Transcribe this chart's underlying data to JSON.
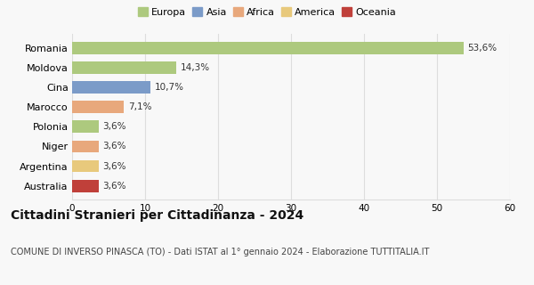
{
  "categories": [
    "Romania",
    "Moldova",
    "Cina",
    "Marocco",
    "Polonia",
    "Niger",
    "Argentina",
    "Australia"
  ],
  "values": [
    53.6,
    14.3,
    10.7,
    7.1,
    3.6,
    3.6,
    3.6,
    3.6
  ],
  "labels": [
    "53,6%",
    "14,3%",
    "10,7%",
    "7,1%",
    "3,6%",
    "3,6%",
    "3,6%",
    "3,6%"
  ],
  "bar_colors": [
    "#adc97e",
    "#adc97e",
    "#7b9bc8",
    "#e8a87c",
    "#adc97e",
    "#e8a87c",
    "#e8c97c",
    "#c0403a"
  ],
  "legend_labels": [
    "Europa",
    "Asia",
    "Africa",
    "America",
    "Oceania"
  ],
  "legend_colors": [
    "#adc97e",
    "#7b9bc8",
    "#e8a87c",
    "#e8c97c",
    "#c0403a"
  ],
  "xlim": [
    0,
    60
  ],
  "xticks": [
    0,
    10,
    20,
    30,
    40,
    50,
    60
  ],
  "title": "Cittadini Stranieri per Cittadinanza - 2024",
  "subtitle": "COMUNE DI INVERSO PINASCA (TO) - Dati ISTAT al 1° gennaio 2024 - Elaborazione TUTTITALIA.IT",
  "background_color": "#f8f8f8",
  "grid_color": "#dddddd",
  "bar_label_fontsize": 7.5,
  "ytick_fontsize": 8,
  "xtick_fontsize": 7.5,
  "title_fontsize": 10,
  "subtitle_fontsize": 7,
  "legend_fontsize": 8
}
